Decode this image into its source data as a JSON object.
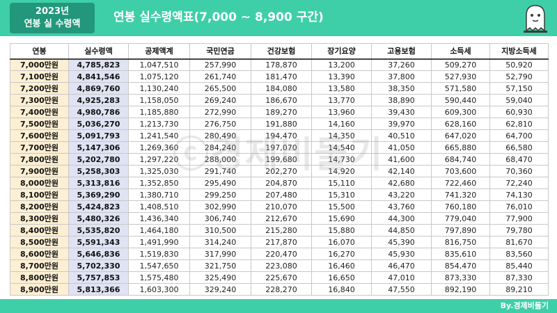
{
  "header": {
    "year_line1": "2023년",
    "year_line2": "연봉 실 수령액",
    "title": "연봉 실수령액표(7,000 ~ 8,900 구간)",
    "mascot": "ghost-icon"
  },
  "watermark": "ⓒ경제비둘기",
  "footer": {
    "credit": "By.경제비둘기"
  },
  "colors": {
    "header": "#3ecfa8",
    "year_box": "#22977b",
    "salary_col": "#fcefd3",
    "net_col": "#dfe3f3"
  },
  "table": {
    "headers": [
      "연봉",
      "실수령액",
      "공제액계",
      "국민연금",
      "건강보험",
      "장기요양",
      "고용보험",
      "소득세",
      "지방소득세"
    ],
    "rows": [
      [
        "7,000만원",
        "4,785,823",
        "1,047,510",
        "257,990",
        "178,870",
        "13,200",
        "37,260",
        "509,270",
        "50,920"
      ],
      [
        "7,100만원",
        "4,841,546",
        "1,075,120",
        "261,740",
        "181,470",
        "13,390",
        "37,800",
        "527,930",
        "52,790"
      ],
      [
        "7,200만원",
        "4,869,760",
        "1,130,240",
        "265,500",
        "184,080",
        "13,580",
        "38,350",
        "571,580",
        "57,150"
      ],
      [
        "7,300만원",
        "4,925,283",
        "1,158,050",
        "269,240",
        "186,670",
        "13,770",
        "38,890",
        "590,440",
        "59,040"
      ],
      [
        "7,400만원",
        "4,980,786",
        "1,185,880",
        "272,990",
        "189,270",
        "13,960",
        "39,430",
        "609,300",
        "60,930"
      ],
      [
        "7,500만원",
        "5,036,270",
        "1,213,730",
        "276,750",
        "191,880",
        "14,160",
        "39,970",
        "628,160",
        "62,810"
      ],
      [
        "7,600만원",
        "5,091,793",
        "1,241,540",
        "280,490",
        "194,470",
        "14,350",
        "40,510",
        "647,020",
        "64,700"
      ],
      [
        "7,700만원",
        "5,147,306",
        "1,269,360",
        "284,240",
        "197,070",
        "14,540",
        "41,050",
        "665,880",
        "66,580"
      ],
      [
        "7,800만원",
        "5,202,780",
        "1,297,220",
        "288,000",
        "199,680",
        "14,730",
        "41,600",
        "684,740",
        "68,470"
      ],
      [
        "7,900만원",
        "5,258,303",
        "1,325,030",
        "291,740",
        "202,270",
        "14,920",
        "42,140",
        "703,600",
        "70,360"
      ],
      [
        "8,000만원",
        "5,313,816",
        "1,352,850",
        "295,490",
        "204,870",
        "15,110",
        "42,680",
        "722,460",
        "72,240"
      ],
      [
        "8,100만원",
        "5,369,290",
        "1,380,710",
        "299,250",
        "207,480",
        "15,310",
        "43,220",
        "741,320",
        "74,130"
      ],
      [
        "8,200만원",
        "5,424,823",
        "1,408,510",
        "302,990",
        "210,070",
        "15,500",
        "43,760",
        "760,180",
        "76,010"
      ],
      [
        "8,300만원",
        "5,480,326",
        "1,436,340",
        "306,740",
        "212,670",
        "15,690",
        "44,300",
        "779,040",
        "77,900"
      ],
      [
        "8,400만원",
        "5,535,820",
        "1,464,180",
        "310,500",
        "215,280",
        "15,880",
        "44,850",
        "797,890",
        "79,780"
      ],
      [
        "8,500만원",
        "5,591,343",
        "1,491,990",
        "314,240",
        "217,870",
        "16,070",
        "45,390",
        "816,750",
        "81,670"
      ],
      [
        "8,600만원",
        "5,646,836",
        "1,519,830",
        "317,990",
        "220,470",
        "16,270",
        "45,930",
        "835,610",
        "83,560"
      ],
      [
        "8,700만원",
        "5,702,330",
        "1,547,650",
        "321,750",
        "223,080",
        "16,460",
        "46,470",
        "854,470",
        "85,440"
      ],
      [
        "8,800만원",
        "5,757,853",
        "1,575,480",
        "325,490",
        "225,670",
        "16,650",
        "47,010",
        "873,330",
        "87,330"
      ],
      [
        "8,900만원",
        "5,813,366",
        "1,603,300",
        "329,240",
        "228,270",
        "16,840",
        "47,550",
        "892,190",
        "89,210"
      ]
    ]
  }
}
